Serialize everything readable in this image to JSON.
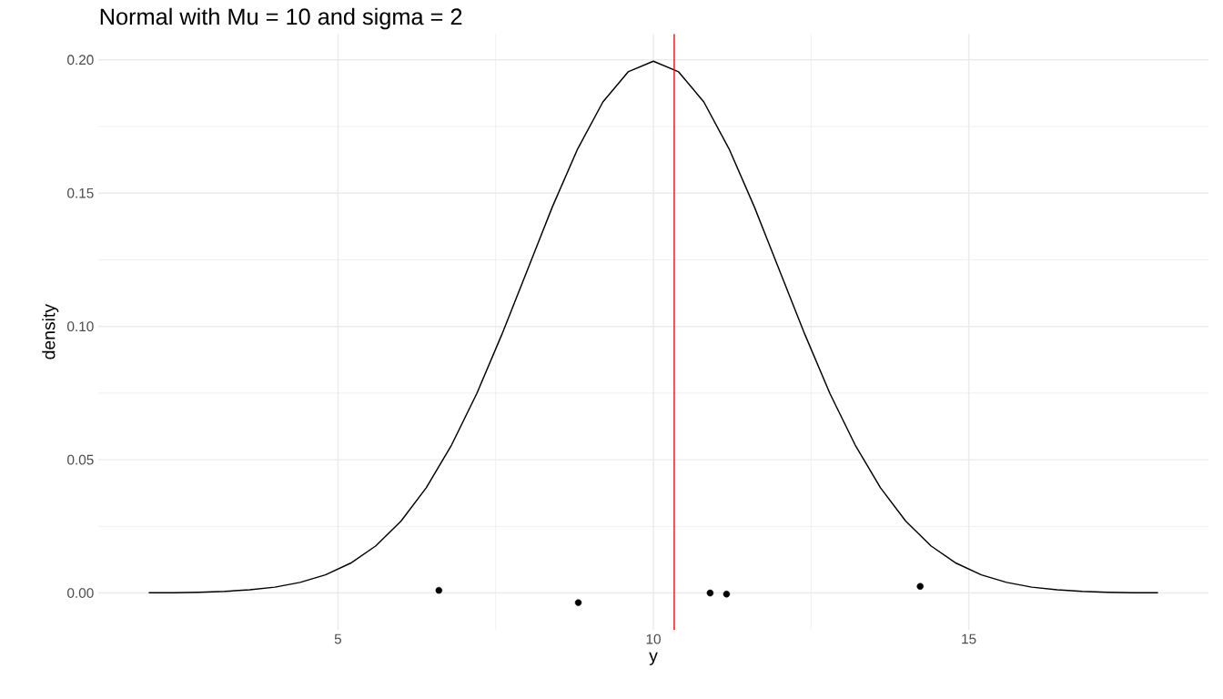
{
  "chart_data": {
    "type": "line",
    "title": "Normal with Mu = 10 and sigma = 2",
    "xlabel": "y",
    "ylabel": "density",
    "xlim": [
      1.2,
      18.8
    ],
    "ylim": [
      -0.0138,
      0.2097
    ],
    "xticks": [
      5,
      10,
      15
    ],
    "yticks": [
      {
        "value": 0,
        "label": "0.00"
      },
      {
        "value": 0.05,
        "label": "0.05"
      },
      {
        "value": 0.1,
        "label": "0.10"
      },
      {
        "value": 0.15,
        "label": "0.15"
      },
      {
        "value": 0.2,
        "label": "0.20"
      }
    ],
    "grid": true,
    "series": [
      {
        "color": "#000000",
        "marker": "none",
        "x": [
          2,
          2.4,
          2.8,
          3.2,
          3.6,
          4,
          4.4,
          4.8,
          5.2,
          5.6,
          6,
          6.4,
          6.8,
          7.2,
          7.6,
          8,
          8.4,
          8.8,
          9.2,
          9.6,
          10,
          10.4,
          10.8,
          11.2,
          11.6,
          12,
          12.4,
          12.8,
          13.2,
          13.6,
          14,
          14.4,
          14.8,
          15.2,
          15.6,
          16,
          16.4,
          16.8,
          17.2,
          17.6,
          18
        ],
        "values": [
          0.0001,
          0.0001,
          0.0003,
          0.0006,
          0.0012,
          0.0022,
          0.004,
          0.0068,
          0.0112,
          0.0177,
          0.027,
          0.0395,
          0.0555,
          0.0748,
          0.0971,
          0.121,
          0.1449,
          0.1666,
          0.1842,
          0.1955,
          0.1995,
          0.1955,
          0.1842,
          0.1666,
          0.1449,
          0.121,
          0.0971,
          0.0748,
          0.0555,
          0.0395,
          0.027,
          0.0177,
          0.0112,
          0.0068,
          0.004,
          0.0022,
          0.0012,
          0.0006,
          0.0003,
          0.0001,
          0.0001
        ]
      },
      {
        "type": "scatter",
        "color": "#000000",
        "marker": "circle",
        "x": [
          6.6,
          8.81,
          10.9,
          11.16,
          14.23
        ],
        "values": [
          0.001,
          -0.0036,
          0.0,
          -0.0004,
          0.0025
        ]
      }
    ],
    "ref_lines": [
      {
        "axis": "x",
        "value": 10.33,
        "color": "#ff0000"
      }
    ]
  }
}
